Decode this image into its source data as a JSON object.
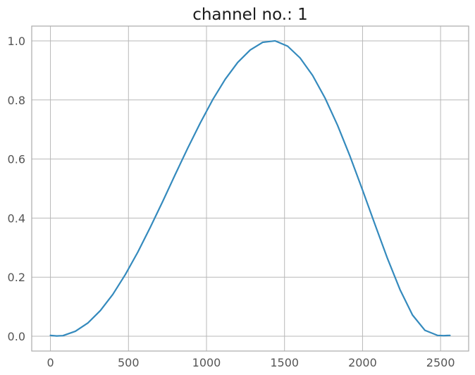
{
  "chart_data": {
    "type": "line",
    "title": "channel no.: 1",
    "xlabel": "",
    "ylabel": "",
    "xlim": [
      -120,
      2680
    ],
    "ylim": [
      -0.05,
      1.05
    ],
    "grid": true,
    "legend": "none",
    "x_ticks": [
      0,
      500,
      1000,
      1500,
      2000,
      2500
    ],
    "x_tick_labels": [
      "0",
      "500",
      "1000",
      "1500",
      "2000",
      "2500"
    ],
    "y_ticks": [
      0.0,
      0.2,
      0.4,
      0.6,
      0.8,
      1.0
    ],
    "y_tick_labels": [
      "0.0",
      "0.2",
      "0.4",
      "0.6",
      "0.8",
      "1.0"
    ],
    "series": [
      {
        "color": "#348abd",
        "x": [
          0,
          40,
          80,
          160,
          240,
          320,
          400,
          480,
          560,
          640,
          720,
          800,
          880,
          960,
          1040,
          1120,
          1200,
          1280,
          1360,
          1440,
          1520,
          1600,
          1680,
          1760,
          1840,
          1920,
          2000,
          2080,
          2160,
          2240,
          2320,
          2400,
          2480,
          2520,
          2560
        ],
        "y": [
          0.003,
          0.001,
          0.002,
          0.017,
          0.045,
          0.087,
          0.142,
          0.209,
          0.285,
          0.369,
          0.457,
          0.548,
          0.637,
          0.722,
          0.801,
          0.87,
          0.927,
          0.969,
          0.995,
          1.0,
          0.982,
          0.942,
          0.883,
          0.806,
          0.714,
          0.609,
          0.495,
          0.378,
          0.263,
          0.158,
          0.072,
          0.02,
          0.003,
          0.002,
          0.003
        ]
      }
    ]
  }
}
